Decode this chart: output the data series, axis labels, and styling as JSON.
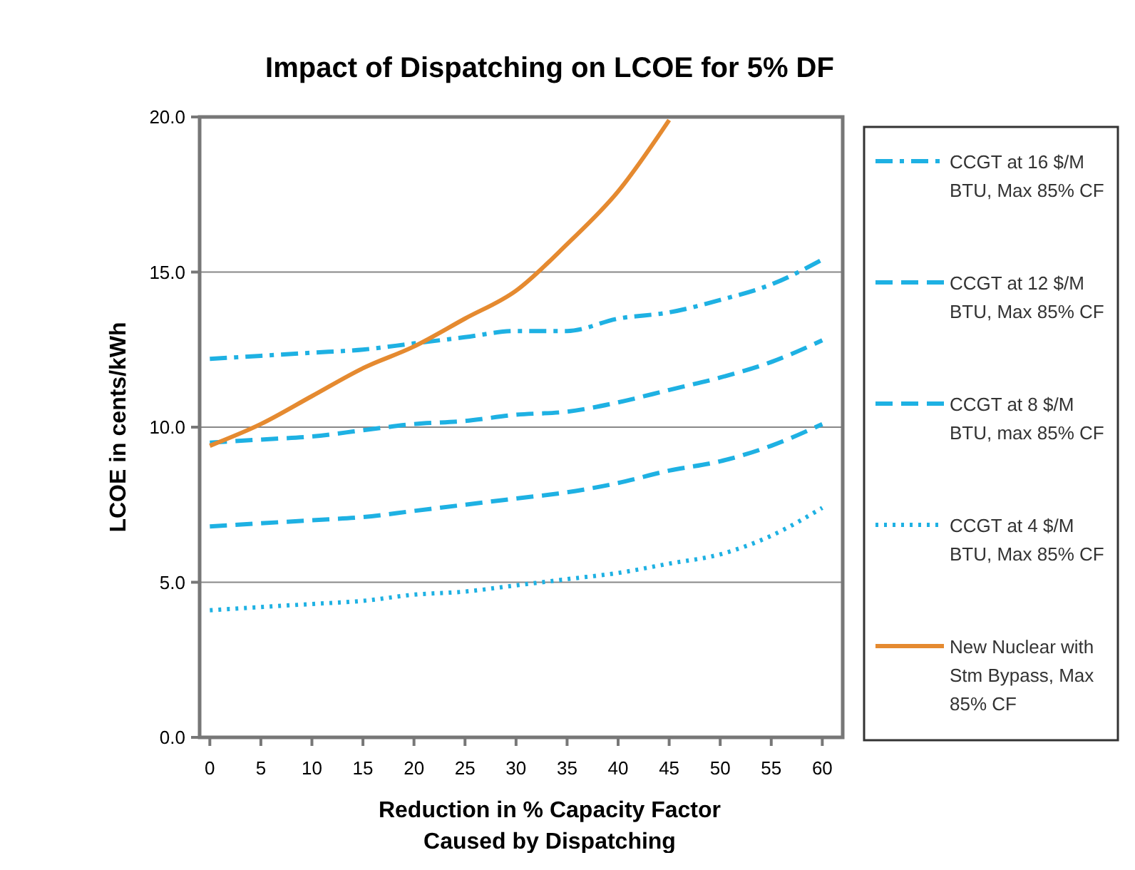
{
  "chart_data": {
    "type": "line",
    "title": "Impact of Dispatching on LCOE for 5% DF",
    "xlabel": "Reduction in % Capacity Factor\nCaused by Dispatching",
    "ylabel": "LCOE in cents/kWh",
    "x": [
      0,
      5,
      10,
      15,
      20,
      25,
      30,
      35,
      40,
      45,
      50,
      55,
      60
    ],
    "series": [
      {
        "name": "CCGT at 16 $/M BTU, Max 85% CF",
        "color": "#1eb1e3",
        "line_style": "dashdot",
        "values": [
          12.2,
          12.3,
          12.4,
          12.5,
          12.7,
          12.9,
          13.1,
          13.1,
          13.5,
          13.7,
          14.1,
          14.6,
          15.4
        ]
      },
      {
        "name": "CCGT at 12 $/M BTU, Max 85% CF",
        "color": "#1eb1e3",
        "line_style": "dashed",
        "values": [
          9.5,
          9.6,
          9.7,
          9.9,
          10.1,
          10.2,
          10.4,
          10.5,
          10.8,
          11.2,
          11.6,
          12.1,
          12.8
        ]
      },
      {
        "name": "CCGT at 8 $/M BTU, max 85% CF",
        "color": "#1eb1e3",
        "line_style": "dashed",
        "values": [
          6.8,
          6.9,
          7.0,
          7.1,
          7.3,
          7.5,
          7.7,
          7.9,
          8.2,
          8.6,
          8.9,
          9.4,
          10.1
        ]
      },
      {
        "name": "CCGT at 4 $/M BTU, Max 85% CF",
        "color": "#1eb1e3",
        "line_style": "dotted",
        "values": [
          4.1,
          4.2,
          4.3,
          4.4,
          4.6,
          4.7,
          4.9,
          5.1,
          5.3,
          5.6,
          5.9,
          6.5,
          7.4
        ]
      },
      {
        "name": "New Nuclear with Stm Bypass, Max 85% CF",
        "color": "#e58a30",
        "line_style": "solid",
        "values": [
          9.4,
          10.1,
          11.0,
          11.9,
          12.6,
          13.5,
          14.4,
          15.9,
          17.6,
          19.9,
          null,
          null,
          null
        ]
      }
    ],
    "xlim": [
      -1,
      62
    ],
    "xticks": [
      0,
      5,
      10,
      15,
      20,
      25,
      30,
      35,
      40,
      45,
      50,
      55,
      60
    ],
    "ylim": [
      0,
      20
    ],
    "yticks": [
      {
        "value": 0,
        "label": "0.0"
      },
      {
        "value": 5,
        "label": "5.0"
      },
      {
        "value": 10,
        "label": "10.0"
      },
      {
        "value": 15,
        "label": "15.0"
      },
      {
        "value": 20,
        "label": "20.0"
      }
    ],
    "grid": "y",
    "legend": "right"
  }
}
